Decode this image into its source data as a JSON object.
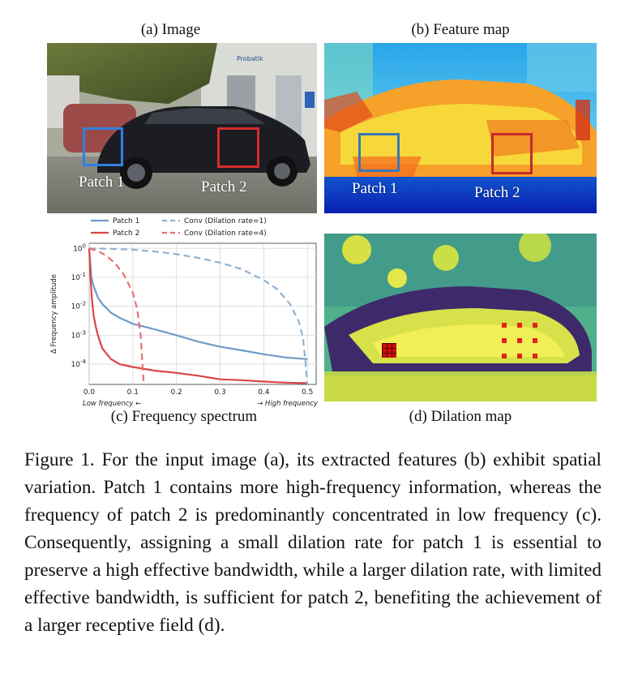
{
  "panels": {
    "a": {
      "title": "(a) Image",
      "patch1": "Patch 1",
      "patch2": "Patch 2"
    },
    "b": {
      "title": "(b) Feature map",
      "patch1": "Patch 1",
      "patch2": "Patch 2"
    },
    "c": {
      "title": "(c) Frequency spectrum"
    },
    "d": {
      "title": "(d) Dilation map"
    }
  },
  "chart_data": {
    "type": "line",
    "xlabel_left": "Low frequency ←",
    "xlabel_right": "→ High frequency",
    "ylabel": "Δ Frequency amplitude",
    "xlim": [
      0,
      0.52
    ],
    "ylim": [
      2e-05,
      1.5
    ],
    "yscale": "log",
    "grid": true,
    "legend_position": "top",
    "x_ticks": [
      "0.0",
      "0.1",
      "0.2",
      "0.3",
      "0.4",
      "0.5"
    ],
    "y_ticks": [
      "10^0",
      "10^-1",
      "10^-2",
      "10^-3",
      "10^-4"
    ],
    "series": [
      {
        "name": "Patch 1",
        "color": "#6f9bc6",
        "style": "solid",
        "x": [
          0.0,
          0.005,
          0.01,
          0.02,
          0.03,
          0.05,
          0.07,
          0.1,
          0.15,
          0.2,
          0.25,
          0.3,
          0.35,
          0.4,
          0.45,
          0.5
        ],
        "y": [
          1.0,
          0.1,
          0.05,
          0.02,
          0.012,
          0.006,
          0.004,
          0.0025,
          0.0016,
          0.001,
          0.0006,
          0.0004,
          0.0003,
          0.00022,
          0.00017,
          0.00015
        ]
      },
      {
        "name": "Patch 2",
        "color": "#dc4446",
        "style": "solid",
        "x": [
          0.0,
          0.003,
          0.006,
          0.01,
          0.015,
          0.02,
          0.03,
          0.05,
          0.07,
          0.1,
          0.15,
          0.2,
          0.25,
          0.3,
          0.35,
          0.4,
          0.45,
          0.5
        ],
        "y": [
          1.0,
          0.1,
          0.02,
          0.005,
          0.002,
          0.001,
          0.00035,
          0.00015,
          0.0001,
          8e-05,
          6e-05,
          5e-05,
          4e-05,
          3e-05,
          2.8e-05,
          2.5e-05,
          2.3e-05,
          2.2e-05
        ]
      },
      {
        "name": "Conv (Dilation rate=1)",
        "color": "#8fb3d4",
        "style": "dashed",
        "x": [
          0.0,
          0.05,
          0.1,
          0.15,
          0.2,
          0.25,
          0.3,
          0.35,
          0.4,
          0.43,
          0.46,
          0.48,
          0.49,
          0.495,
          0.5
        ],
        "y": [
          1.0,
          0.97,
          0.9,
          0.78,
          0.63,
          0.47,
          0.32,
          0.19,
          0.08,
          0.04,
          0.012,
          0.003,
          0.0008,
          0.00015,
          2e-05
        ]
      },
      {
        "name": "Conv (Dilation rate=4)",
        "color": "#e87072",
        "style": "dashed",
        "x": [
          0.0,
          0.02,
          0.04,
          0.06,
          0.08,
          0.1,
          0.11,
          0.118,
          0.122,
          0.125
        ],
        "y": [
          1.0,
          0.82,
          0.55,
          0.3,
          0.12,
          0.03,
          0.008,
          0.001,
          0.0001,
          2e-05
        ]
      }
    ]
  },
  "caption": "Figure 1. For the input image (a), its extracted features (b) exhibit spatial variation. Patch 1 contains more high-frequency information, whereas the frequency of patch 2 is predominantly concentrated in low frequency (c). Consequently, assigning a small dilation rate for patch 1 is essential to preserve a high effective bandwidth, while a larger dilation rate, with limited effective bandwidth, is sufficient for patch 2, benefiting the achievement of a larger receptive field (d)."
}
